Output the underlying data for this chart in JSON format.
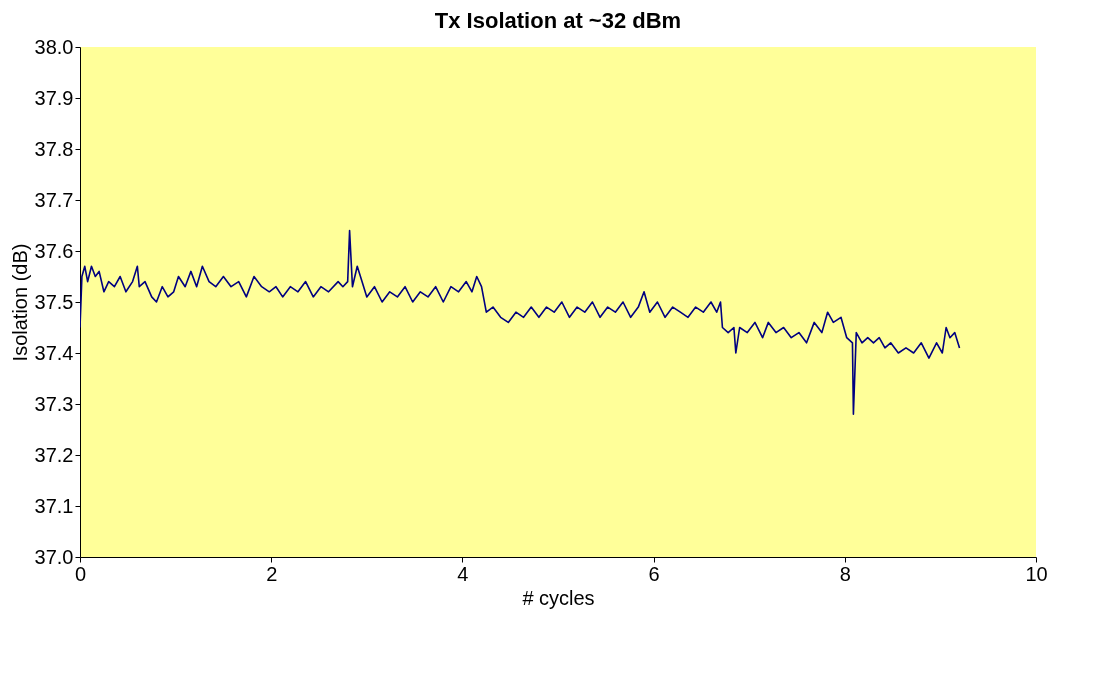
{
  "chart_data": {
    "type": "line",
    "title": "Tx Isolation at ~32 dBm",
    "xlabel": "# cycles",
    "ylabel": "Isolation (dB)",
    "xlim": [
      0,
      10
    ],
    "xticks": [
      0,
      2,
      4,
      6,
      8,
      10
    ],
    "ylim": [
      37.0,
      38.0
    ],
    "yticks": [
      {
        "value": 37.0,
        "label": "37.0"
      },
      {
        "value": 37.1,
        "label": "37.1"
      },
      {
        "value": 37.2,
        "label": "37.2"
      },
      {
        "value": 37.3,
        "label": "37.3"
      },
      {
        "value": 37.4,
        "label": "37.4"
      },
      {
        "value": 37.5,
        "label": "37.5"
      },
      {
        "value": 37.6,
        "label": "37.6"
      },
      {
        "value": 37.7,
        "label": "37.7"
      },
      {
        "value": 37.8,
        "label": "37.8"
      },
      {
        "value": 37.9,
        "label": "37.9"
      },
      {
        "value": 38.0,
        "label": "38.0"
      }
    ],
    "grid": false,
    "legend": false,
    "marker": "none",
    "line_style": "solid",
    "series": [
      {
        "color": "#000080",
        "x": [
          0,
          0.02,
          0.05,
          0.08,
          0.12,
          0.16,
          0.2,
          0.25,
          0.3,
          0.36,
          0.42,
          0.48,
          0.55,
          0.6,
          0.62,
          0.68,
          0.75,
          0.8,
          0.86,
          0.92,
          0.98,
          1.03,
          1.1,
          1.16,
          1.22,
          1.28,
          1.35,
          1.42,
          1.5,
          1.58,
          1.66,
          1.74,
          1.82,
          1.9,
          1.98,
          2.05,
          2.12,
          2.2,
          2.28,
          2.36,
          2.44,
          2.52,
          2.6,
          2.7,
          2.75,
          2.8,
          2.82,
          2.85,
          2.9,
          2.95,
          3.0,
          3.08,
          3.16,
          3.24,
          3.32,
          3.4,
          3.48,
          3.56,
          3.64,
          3.72,
          3.8,
          3.88,
          3.96,
          4.04,
          4.1,
          4.15,
          4.2,
          4.25,
          4.32,
          4.4,
          4.48,
          4.56,
          4.64,
          4.72,
          4.8,
          4.88,
          4.96,
          5.04,
          5.12,
          5.2,
          5.28,
          5.36,
          5.44,
          5.52,
          5.6,
          5.68,
          5.76,
          5.84,
          5.9,
          5.96,
          6.04,
          6.12,
          6.2,
          6.28,
          6.36,
          6.44,
          6.52,
          6.6,
          6.66,
          6.7,
          6.72,
          6.78,
          6.84,
          6.86,
          6.9,
          6.98,
          7.06,
          7.14,
          7.2,
          7.28,
          7.36,
          7.44,
          7.52,
          7.6,
          7.68,
          7.76,
          7.82,
          7.88,
          7.96,
          8.02,
          8.08,
          8.09,
          8.12,
          8.18,
          8.24,
          8.3,
          8.36,
          8.42,
          8.48,
          8.56,
          8.64,
          8.72,
          8.8,
          8.88,
          8.96,
          9.02,
          9.06,
          9.1,
          9.15,
          9.2
        ],
        "values": [
          37.45,
          37.55,
          37.57,
          37.54,
          37.57,
          37.55,
          37.56,
          37.52,
          37.54,
          37.53,
          37.55,
          37.52,
          37.54,
          37.57,
          37.53,
          37.54,
          37.51,
          37.5,
          37.53,
          37.51,
          37.52,
          37.55,
          37.53,
          37.56,
          37.53,
          37.57,
          37.54,
          37.53,
          37.55,
          37.53,
          37.54,
          37.51,
          37.55,
          37.53,
          37.52,
          37.53,
          37.51,
          37.53,
          37.52,
          37.54,
          37.51,
          37.53,
          37.52,
          37.54,
          37.53,
          37.54,
          37.64,
          37.53,
          37.57,
          37.54,
          37.51,
          37.53,
          37.5,
          37.52,
          37.51,
          37.53,
          37.5,
          37.52,
          37.51,
          37.53,
          37.5,
          37.53,
          37.52,
          37.54,
          37.52,
          37.55,
          37.53,
          37.48,
          37.49,
          37.47,
          37.46,
          37.48,
          37.47,
          37.49,
          37.47,
          37.49,
          37.48,
          37.5,
          37.47,
          37.49,
          37.48,
          37.5,
          37.47,
          37.49,
          37.48,
          37.5,
          37.47,
          37.49,
          37.52,
          37.48,
          37.5,
          37.47,
          37.49,
          37.48,
          37.47,
          37.49,
          37.48,
          37.5,
          37.48,
          37.5,
          37.45,
          37.44,
          37.45,
          37.4,
          37.45,
          37.44,
          37.46,
          37.43,
          37.46,
          37.44,
          37.45,
          37.43,
          37.44,
          37.42,
          37.46,
          37.44,
          37.48,
          37.46,
          37.47,
          37.43,
          37.42,
          37.28,
          37.44,
          37.42,
          37.43,
          37.42,
          37.43,
          37.41,
          37.42,
          37.4,
          37.41,
          37.4,
          37.42,
          37.39,
          37.42,
          37.4,
          37.45,
          37.43,
          37.44,
          37.41
        ]
      }
    ]
  }
}
